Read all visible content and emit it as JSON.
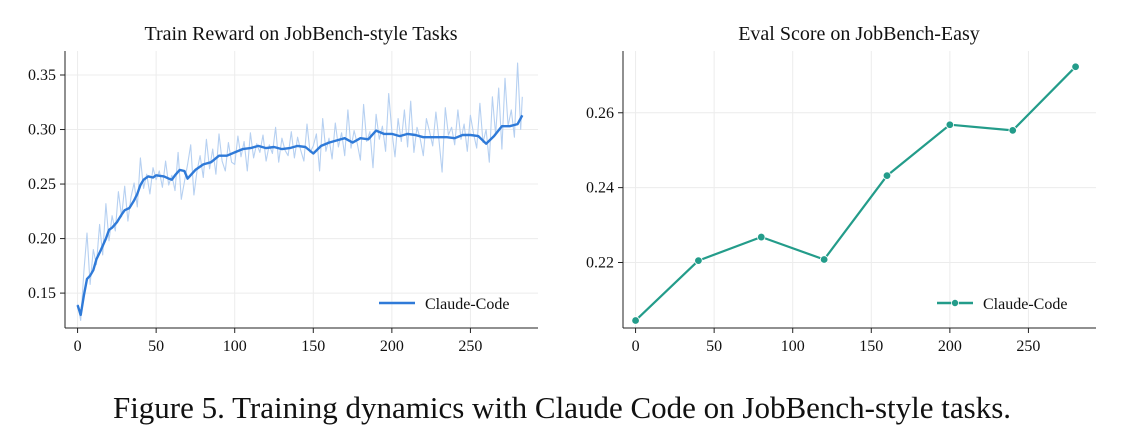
{
  "figure": {
    "caption": "Figure 5. Training dynamics with Claude Code on JobBench-style tasks."
  },
  "chart_data": [
    {
      "type": "line",
      "title": "Train Reward on JobBench-style Tasks",
      "xlabel": "",
      "ylabel": "",
      "xlim": [
        -8,
        293
      ],
      "ylim": [
        0.118,
        0.372
      ],
      "xticks": [
        0,
        50,
        100,
        150,
        200,
        250
      ],
      "yticks": [
        0.15,
        0.2,
        0.25,
        0.3,
        0.35
      ],
      "ytick_labels": [
        "0.15",
        "0.20",
        "0.25",
        "0.30",
        "0.35"
      ],
      "grid": true,
      "legend": {
        "position": "lower-right",
        "entries": [
          "Claude-Code"
        ]
      },
      "colors": {
        "smoothed": "#2f7ad8",
        "raw": "#b6d0f1"
      },
      "series": [
        {
          "name": "Claude-Code",
          "kind": "smoothed",
          "x": [
            0,
            2,
            4,
            6,
            8,
            10,
            12,
            15,
            18,
            20,
            22,
            25,
            28,
            30,
            33,
            36,
            38,
            40,
            42,
            45,
            48,
            50,
            55,
            58,
            60,
            62,
            65,
            68,
            70,
            75,
            80,
            85,
            90,
            95,
            100,
            105,
            110,
            115,
            120,
            125,
            130,
            135,
            140,
            145,
            150,
            155,
            160,
            165,
            170,
            175,
            180,
            185,
            190,
            195,
            200,
            205,
            210,
            215,
            220,
            225,
            230,
            235,
            240,
            245,
            250,
            255,
            260,
            265,
            270,
            275,
            280,
            283
          ],
          "y": [
            0.139,
            0.13,
            0.148,
            0.163,
            0.166,
            0.171,
            0.181,
            0.19,
            0.2,
            0.208,
            0.21,
            0.215,
            0.222,
            0.226,
            0.228,
            0.235,
            0.241,
            0.249,
            0.254,
            0.257,
            0.256,
            0.258,
            0.257,
            0.255,
            0.254,
            0.258,
            0.263,
            0.262,
            0.255,
            0.263,
            0.268,
            0.27,
            0.276,
            0.276,
            0.279,
            0.282,
            0.283,
            0.285,
            0.283,
            0.284,
            0.282,
            0.283,
            0.285,
            0.284,
            0.278,
            0.285,
            0.288,
            0.29,
            0.292,
            0.288,
            0.292,
            0.291,
            0.299,
            0.296,
            0.296,
            0.294,
            0.296,
            0.295,
            0.293,
            0.293,
            0.293,
            0.293,
            0.292,
            0.295,
            0.295,
            0.294,
            0.287,
            0.294,
            0.303,
            0.303,
            0.305,
            0.313
          ]
        },
        {
          "name": "",
          "kind": "raw",
          "x": [
            0,
            2,
            4,
            6,
            8,
            10,
            12,
            14,
            16,
            18,
            20,
            22,
            24,
            26,
            28,
            30,
            32,
            34,
            36,
            38,
            40,
            42,
            44,
            46,
            48,
            50,
            52,
            54,
            56,
            58,
            60,
            62,
            64,
            66,
            68,
            70,
            72,
            74,
            76,
            78,
            80,
            82,
            84,
            86,
            88,
            90,
            92,
            94,
            96,
            98,
            100,
            102,
            104,
            106,
            108,
            110,
            112,
            114,
            116,
            118,
            120,
            122,
            124,
            126,
            128,
            130,
            132,
            134,
            136,
            138,
            140,
            142,
            144,
            146,
            148,
            150,
            152,
            154,
            156,
            158,
            160,
            162,
            164,
            166,
            168,
            170,
            172,
            174,
            176,
            178,
            180,
            182,
            184,
            186,
            188,
            190,
            192,
            194,
            196,
            198,
            200,
            202,
            204,
            206,
            208,
            210,
            212,
            214,
            216,
            218,
            220,
            222,
            224,
            226,
            228,
            230,
            232,
            234,
            236,
            238,
            240,
            242,
            244,
            246,
            248,
            250,
            252,
            254,
            256,
            258,
            260,
            262,
            264,
            266,
            268,
            270,
            272,
            274,
            276,
            278,
            280,
            282,
            283
          ],
          "y": [
            0.14,
            0.125,
            0.17,
            0.205,
            0.158,
            0.19,
            0.176,
            0.213,
            0.185,
            0.232,
            0.198,
            0.221,
            0.207,
            0.243,
            0.22,
            0.248,
            0.216,
            0.238,
            0.251,
            0.229,
            0.274,
            0.246,
            0.259,
            0.241,
            0.265,
            0.254,
            0.262,
            0.247,
            0.271,
            0.249,
            0.258,
            0.244,
            0.279,
            0.236,
            0.252,
            0.268,
            0.286,
            0.24,
            0.262,
            0.276,
            0.256,
            0.291,
            0.264,
            0.282,
            0.259,
            0.296,
            0.271,
            0.262,
            0.288,
            0.27,
            0.268,
            0.294,
            0.275,
            0.289,
            0.262,
            0.297,
            0.274,
            0.287,
            0.279,
            0.295,
            0.271,
            0.286,
            0.278,
            0.302,
            0.27,
            0.292,
            0.281,
            0.276,
            0.298,
            0.274,
            0.293,
            0.281,
            0.271,
            0.305,
            0.279,
            0.285,
            0.296,
            0.262,
            0.31,
            0.28,
            0.292,
            0.273,
            0.306,
            0.284,
            0.297,
            0.276,
            0.318,
            0.283,
            0.299,
            0.287,
            0.272,
            0.323,
            0.289,
            0.298,
            0.265,
            0.314,
            0.291,
            0.303,
            0.28,
            0.333,
            0.298,
            0.275,
            0.31,
            0.289,
            0.318,
            0.284,
            0.326,
            0.279,
            0.302,
            0.292,
            0.276,
            0.31,
            0.298,
            0.285,
            0.316,
            0.29,
            0.261,
            0.32,
            0.295,
            0.302,
            0.286,
            0.318,
            0.291,
            0.305,
            0.28,
            0.313,
            0.296,
            0.283,
            0.324,
            0.288,
            0.3,
            0.27,
            0.33,
            0.295,
            0.338,
            0.282,
            0.347,
            0.303,
            0.318,
            0.293,
            0.361,
            0.3,
            0.33
          ]
        }
      ]
    },
    {
      "type": "line",
      "title": "Eval Score on JobBench-Easy",
      "xlabel": "",
      "ylabel": "",
      "xlim": [
        -8,
        293
      ],
      "ylim": [
        0.2025,
        0.2765
      ],
      "xticks": [
        0,
        50,
        100,
        150,
        200,
        250
      ],
      "yticks": [
        0.22,
        0.24,
        0.26
      ],
      "ytick_labels": [
        "0.22",
        "0.24",
        "0.26"
      ],
      "grid": true,
      "legend": {
        "position": "lower-right",
        "entries": [
          "Claude-Code"
        ]
      },
      "colors": {
        "line": "#239c8a"
      },
      "series": [
        {
          "name": "Claude-Code",
          "x": [
            0,
            40,
            80,
            120,
            160,
            200,
            240,
            280
          ],
          "y": [
            0.2045,
            0.2205,
            0.2268,
            0.2208,
            0.2432,
            0.2568,
            0.2553,
            0.2723
          ]
        }
      ]
    }
  ]
}
